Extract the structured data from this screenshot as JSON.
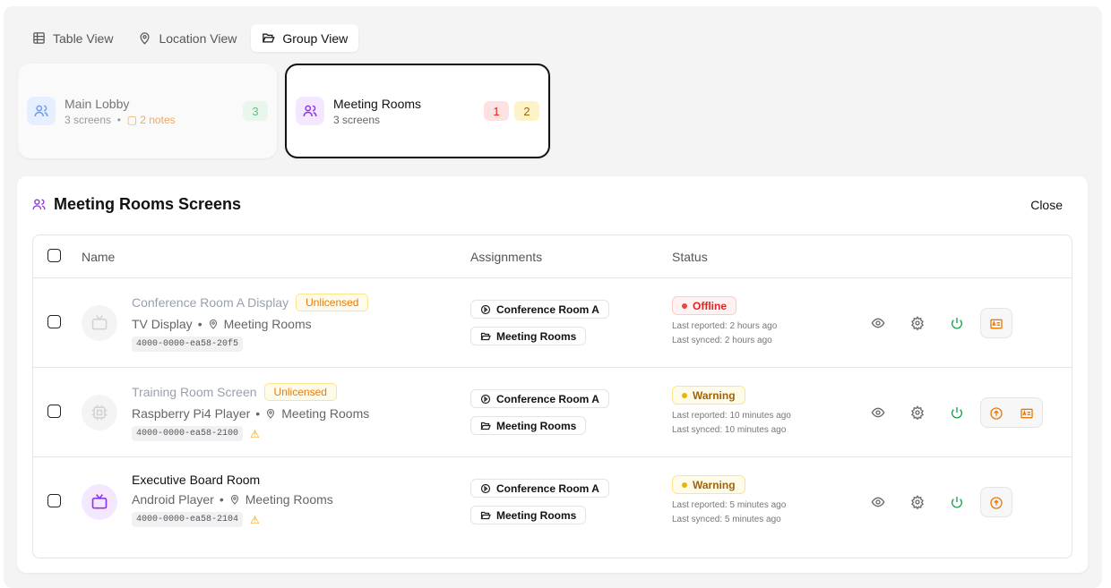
{
  "tabs": [
    {
      "label": "Table View",
      "icon": "table-icon"
    },
    {
      "label": "Location View",
      "icon": "map-pin-icon"
    },
    {
      "label": "Group View",
      "icon": "folder-open-icon",
      "active": true
    }
  ],
  "groups": [
    {
      "title": "Main Lobby",
      "screens": "3 screens",
      "notes": "2 notes",
      "badges": [
        {
          "value": "3",
          "color": "#16a34a"
        }
      ]
    },
    {
      "title": "Meeting Rooms",
      "screens": "3 screens",
      "selected": true,
      "badges": [
        {
          "value": "1",
          "color": "#dc2626"
        },
        {
          "value": "2",
          "color": "#a16207"
        }
      ]
    }
  ],
  "panel": {
    "title": "Meeting Rooms Screens",
    "close_label": "Close",
    "columns": {
      "name": "Name",
      "assignments": "Assignments",
      "status": "Status"
    },
    "rows": [
      {
        "name": "Conference Room A Display",
        "license": "Unlicensed",
        "device": "TV Display",
        "location": "Meeting Rooms",
        "serial": "4000-0000-ea58-20f5",
        "warning": false,
        "playlist": "Conference Room A",
        "group": "Meeting Rooms",
        "status": "Offline",
        "last_reported": "Last reported: 2 hours ago",
        "last_synced": "Last synced: 2 hours ago",
        "dimmed": true,
        "upload": false,
        "license_btn": true
      },
      {
        "name": "Training Room Screen",
        "license": "Unlicensed",
        "device": "Raspberry Pi4 Player",
        "location": "Meeting Rooms",
        "serial": "4000-0000-ea58-2100",
        "warning": true,
        "playlist": "Conference Room A",
        "group": "Meeting Rooms",
        "status": "Warning",
        "last_reported": "Last reported: 10 minutes ago",
        "last_synced": "Last synced: 10 minutes ago",
        "dimmed": true,
        "upload": true,
        "license_btn": true
      },
      {
        "name": "Executive Board Room",
        "license": "",
        "device": "Android Player",
        "location": "Meeting Rooms",
        "serial": "4000-0000-ea58-2104",
        "warning": true,
        "playlist": "Conference Room A",
        "group": "Meeting Rooms",
        "status": "Warning",
        "last_reported": "Last reported: 5 minutes ago",
        "last_synced": "Last synced: 5 minutes ago",
        "dimmed": false,
        "upload": true,
        "license_btn": false
      }
    ]
  },
  "colors": {
    "accent": "#9333ea",
    "offline": "#dc2626",
    "warning": "#ca8a04",
    "power": "#16a34a",
    "orange": "#ea7a0c"
  }
}
